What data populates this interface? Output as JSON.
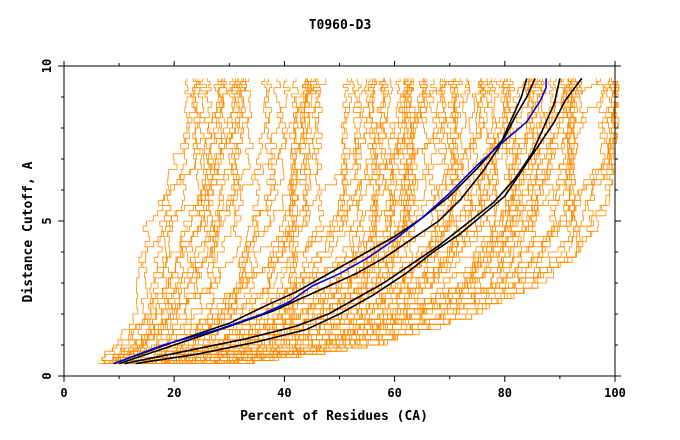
{
  "chart_data": {
    "type": "line",
    "title": "T0960-D3",
    "xlabel": "Percent of Residues (CA)",
    "ylabel": "Distance Cutoff, A",
    "xlim": [
      0,
      100
    ],
    "ylim": [
      0,
      10
    ],
    "x_ticks": [
      0,
      20,
      40,
      60,
      80,
      100
    ],
    "y_ticks": [
      0,
      5,
      10
    ],
    "grid": false,
    "colors": {
      "background_models": "#ff8c00",
      "highlight_black": "#000000",
      "highlight_blue": "#0000dd"
    },
    "background_band": {
      "count": 110,
      "y_levels": [
        0.4,
        1,
        2,
        3,
        4,
        5,
        6,
        7,
        8,
        9,
        9.6
      ],
      "x_left_edge": [
        6,
        9,
        11,
        13,
        14,
        15,
        16,
        16.5,
        17,
        17.5,
        18
      ],
      "x_right_edge": [
        30,
        55,
        74,
        86,
        93,
        97,
        99,
        100,
        100,
        100,
        100
      ],
      "note_removed": true
    },
    "series": [
      {
        "color": "black",
        "x": [
          9,
          20,
          30,
          37,
          42,
          45,
          50,
          55,
          60,
          65,
          70,
          75,
          80,
          82,
          84,
          85.5
        ],
        "y": [
          0.4,
          1.1,
          1.7,
          2.3,
          2.7,
          3.0,
          3.5,
          4.0,
          4.5,
          5.1,
          5.8,
          6.7,
          7.7,
          8.4,
          9.0,
          9.6
        ]
      },
      {
        "color": "black",
        "x": [
          10,
          20,
          30,
          38,
          43,
          48,
          53,
          58,
          63,
          68,
          72,
          76,
          79,
          81,
          83,
          84
        ],
        "y": [
          0.4,
          1.0,
          1.6,
          2.1,
          2.5,
          2.9,
          3.3,
          3.8,
          4.4,
          5.0,
          5.7,
          6.6,
          7.4,
          8.2,
          9.0,
          9.6
        ]
      },
      {
        "color": "black",
        "x": [
          11,
          22,
          33,
          42,
          48,
          53,
          58,
          63,
          68,
          73,
          78,
          82,
          85,
          87,
          89,
          90
        ],
        "y": [
          0.4,
          0.8,
          1.2,
          1.6,
          2.0,
          2.5,
          3.0,
          3.6,
          4.2,
          4.9,
          5.6,
          6.4,
          7.2,
          8.0,
          8.8,
          9.6
        ]
      },
      {
        "color": "black",
        "x": [
          13,
          24,
          35,
          44,
          50,
          56,
          62,
          67,
          72,
          76,
          80,
          83,
          86,
          89,
          91,
          94
        ],
        "y": [
          0.4,
          0.7,
          1.1,
          1.5,
          2.0,
          2.6,
          3.3,
          4.0,
          4.6,
          5.2,
          5.8,
          6.6,
          7.4,
          8.2,
          8.9,
          9.6
        ]
      },
      {
        "color": "blue",
        "x": [
          9,
          18,
          28,
          36,
          41,
          45,
          50,
          55,
          60,
          65,
          70,
          75,
          80,
          84,
          86.5,
          87.5,
          87.5
        ],
        "y": [
          0.4,
          1.0,
          1.5,
          2.0,
          2.4,
          2.9,
          3.3,
          3.8,
          4.4,
          5.1,
          5.9,
          6.8,
          7.6,
          8.2,
          8.9,
          9.3,
          9.6
        ]
      }
    ]
  }
}
